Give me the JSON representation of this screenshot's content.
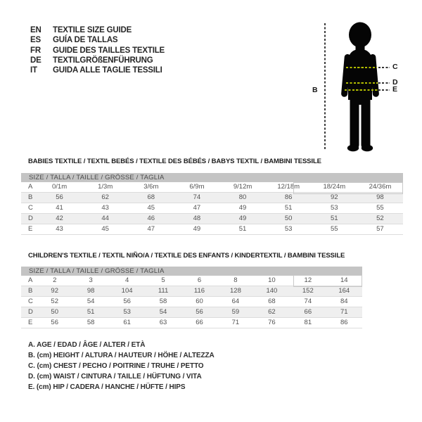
{
  "languages": [
    {
      "code": "EN",
      "label": "TEXTILE SIZE GUIDE"
    },
    {
      "code": "ES",
      "label": "GUÍA DE TALLAS"
    },
    {
      "code": "FR",
      "label": "GUIDE DES TAILLES TEXTILE"
    },
    {
      "code": "DE",
      "label": "TEXTILGRÖßENFÜHRUNG"
    },
    {
      "code": "IT",
      "label": "GUIDA ALLE TAGLIE TESSILI"
    }
  ],
  "figure": {
    "height_label": "B",
    "chest_label": "C",
    "waist_label": "D",
    "hip_label": "E",
    "body_dash_color": "#b2bd00",
    "line_color": "#3c3c3c"
  },
  "babies": {
    "title": "BABIES TEXTILE / TEXTIL BEBÉS / TEXTILE DES BÉBÉS / BABYS TEXTIL / BAMBINI TESSILE",
    "size_header": "SIZE / TALLA / TAILLE / GRÖSSE / TAGLIA",
    "rows": [
      {
        "label": "A",
        "values": [
          "0/1m",
          "1/3m",
          "3/6m",
          "6/9m",
          "9/12m",
          "12/18m",
          "18/24m",
          "24/36m"
        ]
      },
      {
        "label": "B",
        "values": [
          "56",
          "62",
          "68",
          "74",
          "80",
          "86",
          "92",
          "98"
        ]
      },
      {
        "label": "C",
        "values": [
          "41",
          "43",
          "45",
          "47",
          "49",
          "51",
          "53",
          "55"
        ]
      },
      {
        "label": "D",
        "values": [
          "42",
          "44",
          "46",
          "48",
          "49",
          "50",
          "51",
          "52"
        ]
      },
      {
        "label": "E",
        "values": [
          "43",
          "45",
          "47",
          "49",
          "51",
          "53",
          "55",
          "57"
        ]
      }
    ]
  },
  "children": {
    "title": "CHILDREN'S TEXTILE / TEXTIL NIÑO/A / TEXTILE DES ENFANTS / KINDERTEXTIL / BAMBINI TESSILE",
    "size_header": "SIZE / TALLA / TAILLE / GRÖSSE / TAGLIA",
    "rows": [
      {
        "label": "A",
        "values": [
          "2",
          "3",
          "4",
          "5",
          "6",
          "8",
          "10",
          "12",
          "14"
        ]
      },
      {
        "label": "B",
        "values": [
          "92",
          "98",
          "104",
          "111",
          "116",
          "128",
          "140",
          "152",
          "164"
        ]
      },
      {
        "label": "C",
        "values": [
          "52",
          "54",
          "56",
          "58",
          "60",
          "64",
          "68",
          "74",
          "84"
        ]
      },
      {
        "label": "D",
        "values": [
          "50",
          "51",
          "53",
          "54",
          "56",
          "59",
          "62",
          "66",
          "71"
        ]
      },
      {
        "label": "E",
        "values": [
          "56",
          "58",
          "61",
          "63",
          "66",
          "71",
          "76",
          "81",
          "86"
        ]
      }
    ]
  },
  "legend": {
    "lines": [
      "A. AGE / EDAD / ÂGE / ALTER / ETÀ",
      "B. (cm) HEIGHT / ALTURA / HAUTEUR / HÖHE / ALTEZZA",
      "C. (cm) CHEST / PECHO / POITRINE / TRUHE / PETTO",
      "D. (cm) WAIST / CINTURA / TAILLE / HÜFTUNG / VITA",
      "E. (cm) HIP / CADERA / HANCHE / HÜFTE / HIPS"
    ]
  },
  "colors": {
    "header_bar": "#c4c4c4",
    "row_stripe": "#efefef",
    "silhouette": "#050505",
    "accent_dash": "#b2bd00"
  }
}
